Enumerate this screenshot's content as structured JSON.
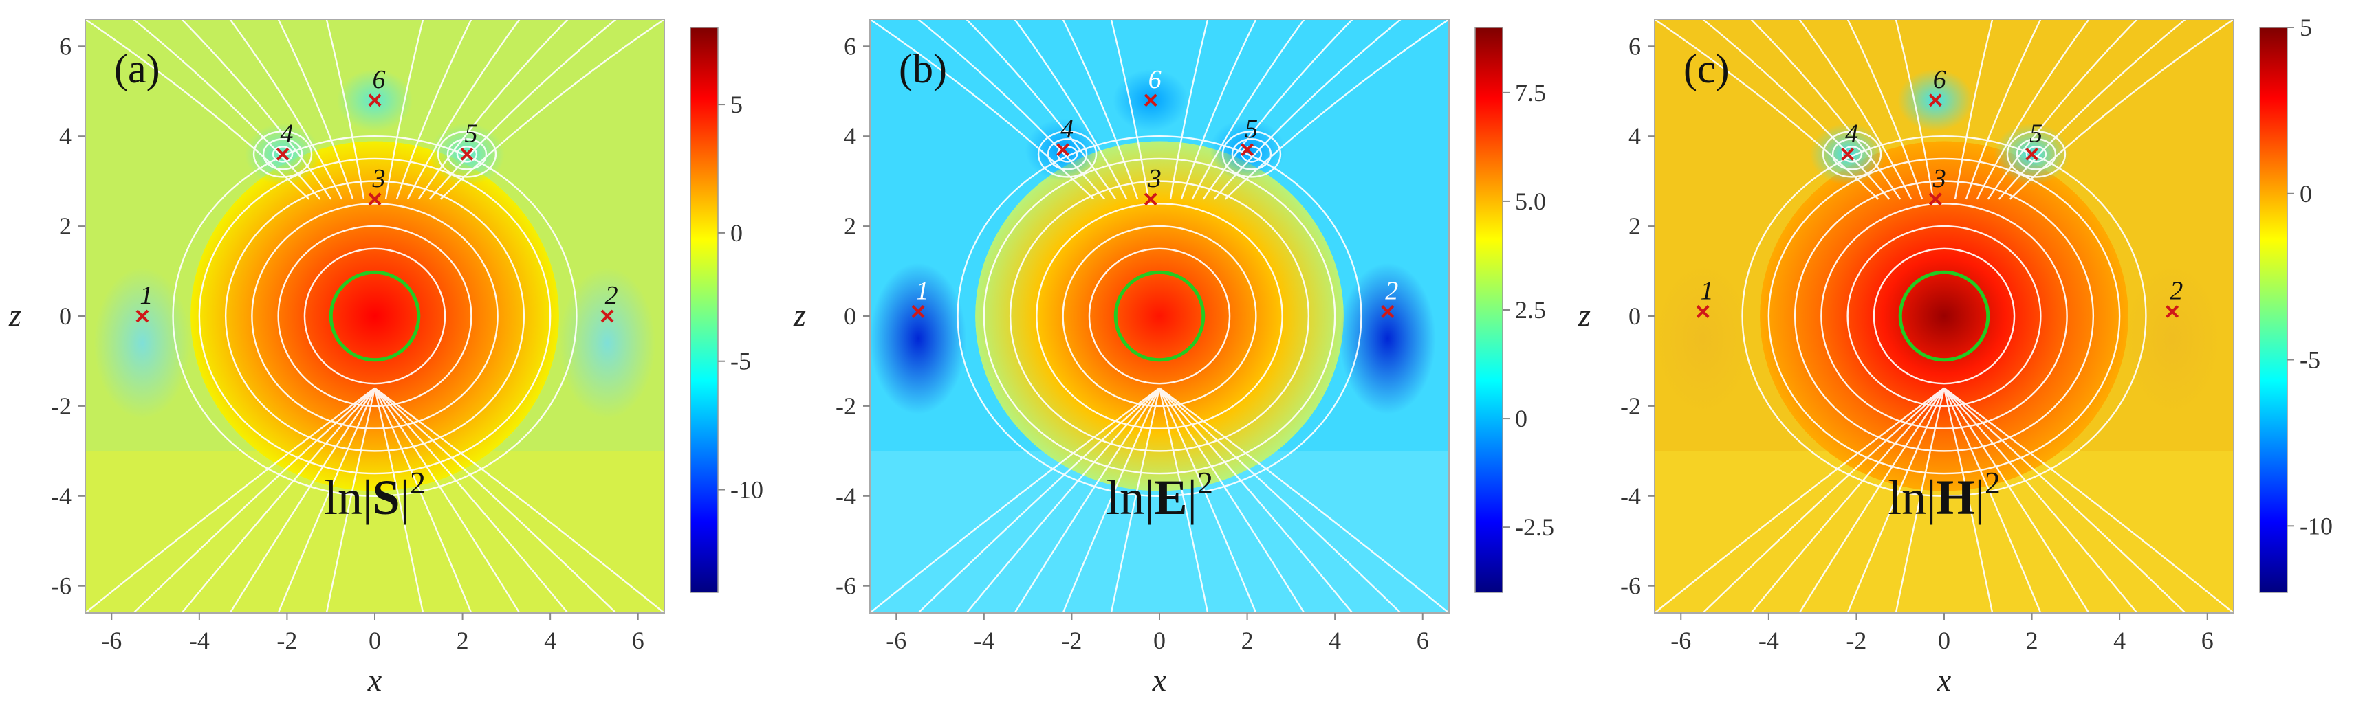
{
  "colormap": [
    "#00007f",
    "#0000ff",
    "#007fff",
    "#00ffff",
    "#7fff7f",
    "#ffff00",
    "#ff7f00",
    "#ff0000",
    "#7f0000"
  ],
  "accent_colors": {
    "circle": "#22cc22",
    "streamline": "#ffffff",
    "marker": "#d01818"
  },
  "chart_data": [
    {
      "type": "heatmap",
      "panel_label": "(a)",
      "quantity_label_prefix": "ln|",
      "quantity_label_symbol": "S",
      "quantity_label_suffix": "|",
      "quantity_label_power": "2",
      "xlabel": "x",
      "ylabel": "z",
      "xlim": [
        -6.6,
        6.6
      ],
      "ylim": [
        -6.6,
        6.6
      ],
      "xticks": [
        -6,
        -4,
        -2,
        0,
        2,
        4,
        6
      ],
      "yticks": [
        -6,
        -4,
        -2,
        0,
        2,
        4,
        6
      ],
      "colorbar": {
        "range": [
          -14,
          8
        ],
        "ticks": [
          -10,
          -5,
          0,
          5
        ]
      },
      "circle": {
        "center": [
          0,
          0
        ],
        "radius": 1
      },
      "critical_points": [
        {
          "label": "1",
          "x": -5.3,
          "z": 0.0
        },
        {
          "label": "2",
          "x": 5.3,
          "z": 0.0
        },
        {
          "label": "3",
          "x": 0.0,
          "z": 2.6
        },
        {
          "label": "4",
          "x": -2.1,
          "z": 3.6
        },
        {
          "label": "5",
          "x": 2.1,
          "z": 3.6
        },
        {
          "label": "6",
          "x": 0.0,
          "z": 4.8
        }
      ]
    },
    {
      "type": "heatmap",
      "panel_label": "(b)",
      "quantity_label_prefix": "ln|",
      "quantity_label_symbol": "E",
      "quantity_label_suffix": "|",
      "quantity_label_power": "2",
      "xlabel": "x",
      "ylabel": "z",
      "xlim": [
        -6.6,
        6.6
      ],
      "ylim": [
        -6.6,
        6.6
      ],
      "xticks": [
        -6,
        -4,
        -2,
        0,
        2,
        4,
        6
      ],
      "yticks": [
        -6,
        -4,
        -2,
        0,
        2,
        4,
        6
      ],
      "colorbar": {
        "range": [
          -4,
          9
        ],
        "ticks": [
          -2.5,
          0,
          2.5,
          5.0,
          7.5
        ]
      },
      "circle": {
        "center": [
          0,
          0
        ],
        "radius": 1
      },
      "critical_points": [
        {
          "label": "1",
          "x": -5.5,
          "z": 0.1
        },
        {
          "label": "2",
          "x": 5.2,
          "z": 0.1
        },
        {
          "label": "3",
          "x": -0.2,
          "z": 2.6
        },
        {
          "label": "4",
          "x": -2.2,
          "z": 3.7
        },
        {
          "label": "5",
          "x": 2.0,
          "z": 3.7
        },
        {
          "label": "6",
          "x": -0.2,
          "z": 4.8
        }
      ]
    },
    {
      "type": "heatmap",
      "panel_label": "(c)",
      "quantity_label_prefix": "ln|",
      "quantity_label_symbol": "H",
      "quantity_label_suffix": "|",
      "quantity_label_power": "2",
      "xlabel": "x",
      "ylabel": "z",
      "xlim": [
        -6.6,
        6.6
      ],
      "ylim": [
        -6.6,
        6.6
      ],
      "xticks": [
        -6,
        -4,
        -2,
        0,
        2,
        4,
        6
      ],
      "yticks": [
        -6,
        -4,
        -2,
        0,
        2,
        4,
        6
      ],
      "colorbar": {
        "range": [
          -12,
          5
        ],
        "ticks": [
          -10,
          -5,
          0,
          5
        ]
      },
      "circle": {
        "center": [
          0,
          0
        ],
        "radius": 1
      },
      "critical_points": [
        {
          "label": "1",
          "x": -5.5,
          "z": 0.1
        },
        {
          "label": "2",
          "x": 5.2,
          "z": 0.1
        },
        {
          "label": "3",
          "x": -0.2,
          "z": 2.6
        },
        {
          "label": "4",
          "x": -2.2,
          "z": 3.6
        },
        {
          "label": "5",
          "x": 2.0,
          "z": 3.6
        },
        {
          "label": "6",
          "x": -0.2,
          "z": 4.8
        }
      ]
    }
  ]
}
